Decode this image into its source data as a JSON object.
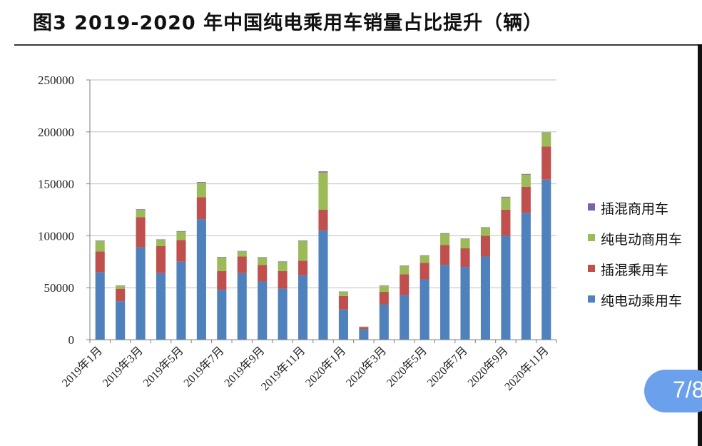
{
  "page": {
    "title": "图3  2019-2020 年中国纯电乘用车销量占比提升（辆）",
    "badge": "7/8"
  },
  "colors": {
    "phev_commercial": "#7b5fb5",
    "bev_commercial": "#9bbb59",
    "phev_passenger": "#c0504d",
    "bev_passenger": "#4f81bd",
    "axis": "#7f7f7f",
    "gridline": "#bfbfbf"
  },
  "chart_data": {
    "type": "bar",
    "stacked": true,
    "categories": [
      "2019年1月",
      "2019年2月",
      "2019年3月",
      "2019年4月",
      "2019年5月",
      "2019年6月",
      "2019年7月",
      "2019年8月",
      "2019年9月",
      "2019年10月",
      "2019年11月",
      "2019年12月",
      "2020年1月",
      "2020年2月",
      "2020年3月",
      "2020年4月",
      "2020年5月",
      "2020年6月",
      "2020年7月",
      "2020年8月",
      "2020年9月",
      "2020年10月",
      "2020年11月"
    ],
    "tick_labels": [
      "2019年1月",
      "",
      "2019年3月",
      "",
      "2019年5月",
      "",
      "2019年7月",
      "",
      "2019年9月",
      "",
      "2019年11月",
      "",
      "2020年1月",
      "",
      "2020年3月",
      "",
      "2020年5月",
      "",
      "2020年7月",
      "",
      "2020年9月",
      "",
      "2020年11月"
    ],
    "series": [
      {
        "name": "纯电动乘用车",
        "color": "#4f81bd",
        "values": [
          65000,
          37000,
          89000,
          64000,
          75000,
          116000,
          48000,
          64000,
          56000,
          49000,
          62000,
          105000,
          29000,
          10000,
          34000,
          43000,
          58000,
          72000,
          70000,
          80000,
          100000,
          122000,
          154000
        ]
      },
      {
        "name": "插混乘用车",
        "color": "#c0504d",
        "values": [
          20000,
          12000,
          29000,
          26000,
          21000,
          21000,
          18000,
          16000,
          16000,
          17000,
          14000,
          20000,
          13000,
          2000,
          12000,
          20000,
          16000,
          19000,
          18000,
          20000,
          25000,
          25000,
          32000
        ]
      },
      {
        "name": "纯电动商用车",
        "color": "#9bbb59",
        "values": [
          10000,
          3000,
          7000,
          6000,
          8000,
          14000,
          13000,
          5000,
          7000,
          9000,
          19000,
          36000,
          4000,
          500,
          6000,
          8000,
          7000,
          11000,
          9000,
          8000,
          12000,
          12000,
          13000
        ]
      },
      {
        "name": "插混商用车",
        "color": "#7b5fb5",
        "values": [
          500,
          300,
          500,
          500,
          500,
          700,
          500,
          400,
          400,
          400,
          500,
          1000,
          300,
          100,
          300,
          400,
          300,
          500,
          400,
          300,
          500,
          500,
          500
        ]
      }
    ],
    "legend_order": [
      "插混商用车",
      "纯电动商用车",
      "插混乘用车",
      "纯电动乘用车"
    ],
    "y_ticks": [
      0,
      50000,
      100000,
      150000,
      200000,
      250000
    ],
    "ylim": [
      0,
      250000
    ],
    "grid": true,
    "legend_position": "right",
    "xlabel": "",
    "ylabel": ""
  }
}
